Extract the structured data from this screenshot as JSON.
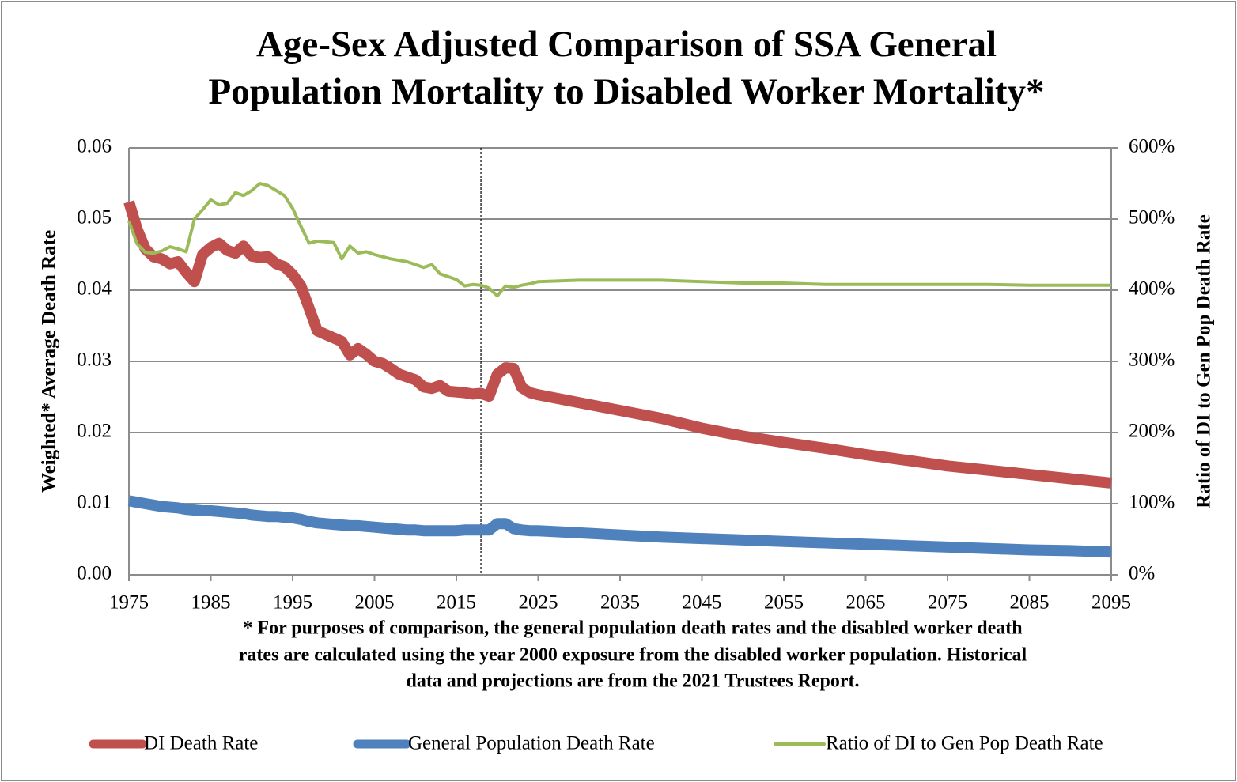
{
  "chart_data": {
    "type": "line",
    "title": [
      "Age-Sex Adjusted Comparison of SSA General",
      "Population Mortality to Disabled Worker Mortality*"
    ],
    "y_label": "Weighted* Average Death Rate",
    "y2_label": "Ratio of DI to Gen Pop Death Rate",
    "footnote": [
      "* For purposes of comparison, the general population death rates and the disabled worker death",
      "rates are calculated using the year 2000 exposure from the disabled worker population.  Historical",
      "data and projections are from the 2021 Trustees Report."
    ],
    "x": [
      1975,
      1976,
      1977,
      1978,
      1979,
      1980,
      1981,
      1982,
      1983,
      1984,
      1985,
      1986,
      1987,
      1988,
      1989,
      1990,
      1991,
      1992,
      1993,
      1994,
      1995,
      1996,
      1997,
      1998,
      1999,
      2000,
      2001,
      2002,
      2003,
      2004,
      2005,
      2006,
      2007,
      2008,
      2009,
      2010,
      2011,
      2012,
      2013,
      2014,
      2015,
      2016,
      2017,
      2018,
      2019,
      2020,
      2021,
      2022,
      2023,
      2024,
      2025,
      2030,
      2035,
      2040,
      2045,
      2050,
      2055,
      2060,
      2065,
      2070,
      2075,
      2080,
      2085,
      2090,
      2095
    ],
    "series": [
      {
        "name": "DI Death Rate",
        "color": "#c0504d",
        "width": 14,
        "values": [
          0.0524,
          0.0486,
          0.0458,
          0.0447,
          0.0444,
          0.0437,
          0.044,
          0.0425,
          0.0412,
          0.045,
          0.046,
          0.0466,
          0.0456,
          0.0452,
          0.0462,
          0.0448,
          0.0446,
          0.0447,
          0.0437,
          0.0433,
          0.0422,
          0.0406,
          0.0375,
          0.0343,
          0.0338,
          0.0333,
          0.0328,
          0.0309,
          0.0318,
          0.031,
          0.03,
          0.0297,
          0.029,
          0.0282,
          0.0278,
          0.0274,
          0.0264,
          0.0262,
          0.0266,
          0.0258,
          0.0257,
          0.0256,
          0.0254,
          0.0255,
          0.0251,
          0.0282,
          0.0291,
          0.029,
          0.0263,
          0.0256,
          0.0253,
          0.0242,
          0.0231,
          0.022,
          0.0206,
          0.0195,
          0.0186,
          0.0178,
          0.0169,
          0.0161,
          0.0153,
          0.0147,
          0.0141,
          0.0135,
          0.0129
        ]
      },
      {
        "name": "General Population Death Rate",
        "color": "#4f81bd",
        "width": 14,
        "values": [
          0.0104,
          0.0102,
          0.01,
          0.0098,
          0.0096,
          0.0095,
          0.0094,
          0.0092,
          0.0091,
          0.009,
          0.009,
          0.0089,
          0.0088,
          0.0087,
          0.0086,
          0.0084,
          0.0083,
          0.0082,
          0.0082,
          0.0081,
          0.008,
          0.0078,
          0.0075,
          0.0073,
          0.0072,
          0.0071,
          0.007,
          0.0069,
          0.0069,
          0.0068,
          0.0067,
          0.0066,
          0.0065,
          0.0064,
          0.0063,
          0.0063,
          0.0062,
          0.0062,
          0.0062,
          0.0062,
          0.0062,
          0.0063,
          0.0063,
          0.0063,
          0.0063,
          0.0072,
          0.0072,
          0.0065,
          0.0063,
          0.0062,
          0.0062,
          0.0059,
          0.0056,
          0.0053,
          0.0051,
          0.0049,
          0.0047,
          0.0045,
          0.0043,
          0.0041,
          0.0039,
          0.0037,
          0.0035,
          0.0034,
          0.0032
        ]
      },
      {
        "name": "Ratio of DI to Gen Pop Death Rate",
        "color": "#9bbb59",
        "width": 4,
        "axis": "y2",
        "values": [
          497,
          465,
          453,
          452,
          455,
          461,
          458,
          454,
          500,
          513,
          527,
          520,
          522,
          537,
          533,
          540,
          550,
          547,
          540,
          533,
          515,
          490,
          466,
          469,
          468,
          467,
          444,
          462,
          452,
          454,
          450,
          447,
          444,
          442,
          440,
          436,
          432,
          436,
          423,
          419,
          415,
          406,
          408,
          407,
          403,
          392,
          406,
          404,
          407,
          409,
          412,
          414,
          414,
          414,
          412,
          410,
          410,
          408,
          408,
          408,
          408,
          408,
          407,
          407,
          407
        ]
      }
    ],
    "xlim": [
      1975,
      2095
    ],
    "xticks": [
      1975,
      1985,
      1995,
      2005,
      2015,
      2025,
      2035,
      2045,
      2055,
      2065,
      2075,
      2085,
      2095
    ],
    "ylim": [
      0,
      0.06
    ],
    "yticks": [
      {
        "value": 0,
        "label": "0.00"
      },
      0.01,
      0.02,
      0.03,
      0.04,
      0.05,
      0.06
    ],
    "y2lim": [
      0,
      600
    ],
    "y2ticks": [
      {
        "value": 0,
        "label": "0%"
      },
      {
        "value": 100,
        "label": "100%"
      },
      {
        "value": 200,
        "label": "200%"
      },
      {
        "value": 300,
        "label": "300%"
      },
      {
        "value": 400,
        "label": "400%"
      },
      {
        "value": 500,
        "label": "500%"
      },
      {
        "value": 600,
        "label": "600%"
      }
    ],
    "divider_x": 2018,
    "grid": true,
    "legend": "bottom"
  }
}
